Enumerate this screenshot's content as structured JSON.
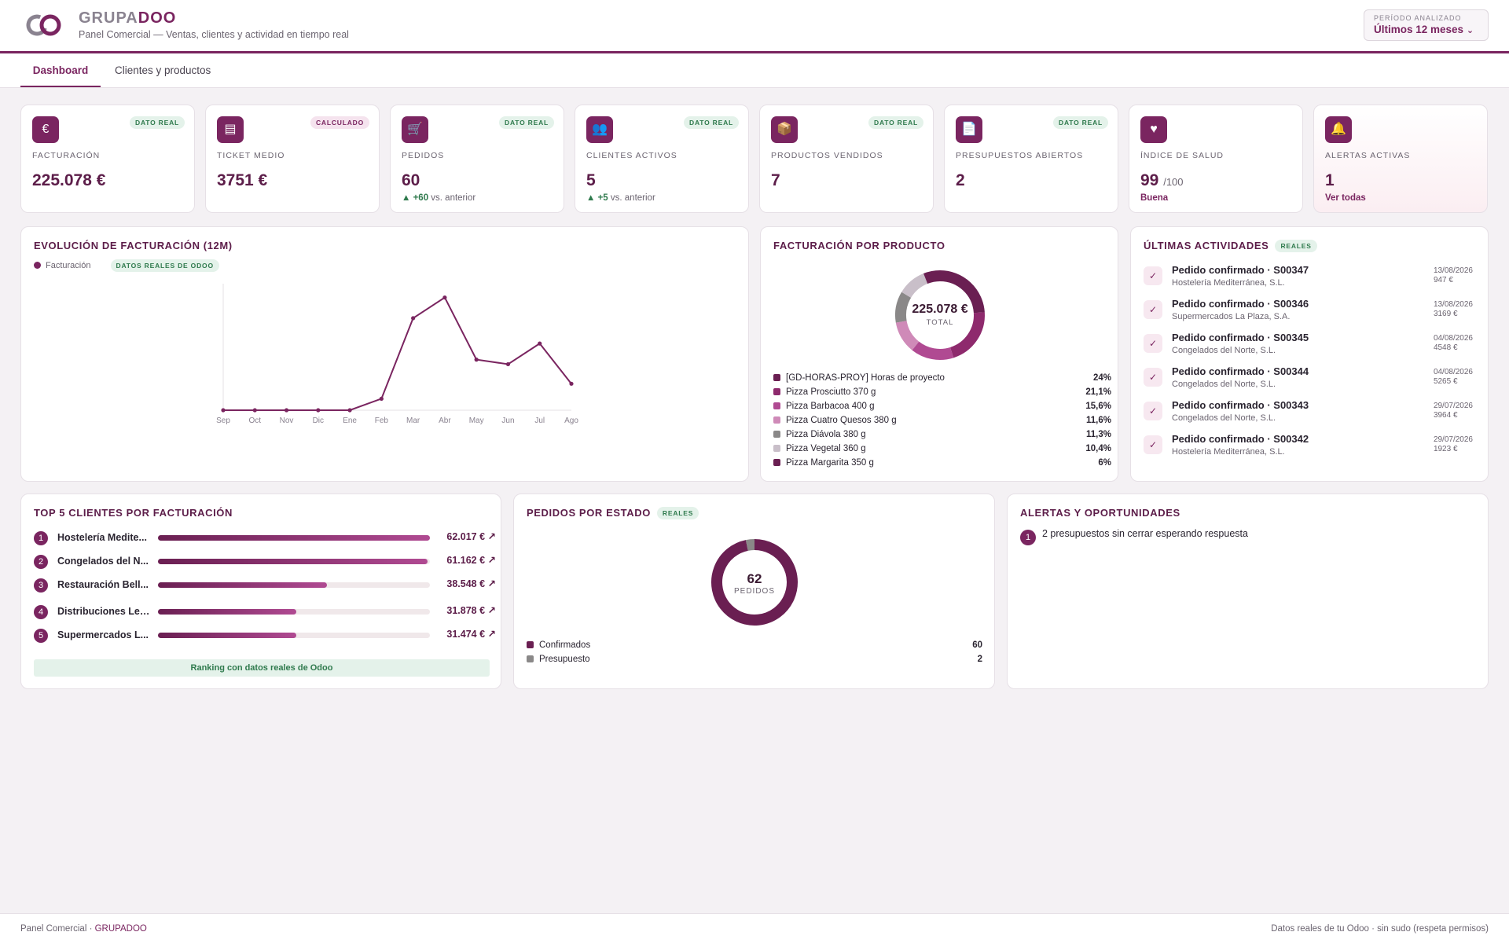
{
  "header": {
    "brand_part1": "GRUPA",
    "brand_part2": "DOO",
    "subtitle": "Panel Comercial — Ventas, clientes y actividad en tiempo real",
    "period_label": "PERÍODO ANALIZADO",
    "period_value": "Últimos 12 meses"
  },
  "tabs": [
    {
      "label": "Dashboard",
      "active": true
    },
    {
      "label": "Clientes y productos",
      "active": false
    }
  ],
  "kpis": [
    {
      "icon": "euro-icon",
      "glyph": "€",
      "badge": "DATO REAL",
      "label": "FACTURACIÓN",
      "value": "225.078 €"
    },
    {
      "icon": "receipt-icon",
      "glyph": "▤",
      "badge": "CALCULADO",
      "label": "TICKET MEDIO",
      "value": "3751 €"
    },
    {
      "icon": "cart-icon",
      "glyph": "🛒",
      "badge": "DATO REAL",
      "label": "PEDIDOS",
      "value": "60",
      "delta": "▲ +60",
      "delta_text": " vs. anterior"
    },
    {
      "icon": "users-icon",
      "glyph": "👥",
      "badge": "DATO REAL",
      "label": "CLIENTES ACTIVOS",
      "value": "5",
      "delta": "▲ +5",
      "delta_text": " vs. anterior"
    },
    {
      "icon": "box-icon",
      "glyph": "📦",
      "badge": "DATO REAL",
      "label": "PRODUCTOS VENDIDOS",
      "value": "7"
    },
    {
      "icon": "document-icon",
      "glyph": "📄",
      "badge": "DATO REAL",
      "label": "PRESUPUESTOS ABIERTOS",
      "value": "2"
    },
    {
      "icon": "heart-icon",
      "glyph": "♥",
      "label": "ÍNDICE DE SALUD",
      "value": "99",
      "value_suffix": "/100",
      "sub": "Buena"
    },
    {
      "icon": "bell-icon",
      "glyph": "🔔",
      "label": "ALERTAS ACTIVAS",
      "value": "1",
      "sub": "Ver todas"
    }
  ],
  "revenue_chart": {
    "title": "EVOLUCIÓN DE FACTURACIÓN (12M)",
    "badge": "DATOS REALES DE ODOO",
    "chart_data": {
      "type": "line",
      "categories": [
        "Sep",
        "Oct",
        "Nov",
        "Dic",
        "Ene",
        "Feb",
        "Mar",
        "Abr",
        "May",
        "Jun",
        "Jul",
        "Ago"
      ],
      "series": [
        {
          "name": "Facturación",
          "values": [
            0,
            0,
            0,
            0,
            0,
            5000,
            40000,
            49000,
            22000,
            20000,
            29000,
            11500
          ]
        }
      ],
      "ylim": [
        0,
        55000
      ],
      "grid": false,
      "accent": "#7a2560"
    }
  },
  "product_chart": {
    "title": "FACTURACIÓN POR PRODUCTO",
    "center_value": "225.078 €",
    "center_label": "TOTAL",
    "chart_data": {
      "type": "pie",
      "categories": [
        "[GD-HORAS-PROY] Horas de proyecto",
        "Pizza Prosciutto 370 g",
        "Pizza Barbacoa 400 g",
        "Pizza Cuatro Quesos 380 g",
        "Pizza Diávola 380 g",
        "Pizza Vegetal 360 g",
        "Pizza Margarita 350 g"
      ],
      "values": [
        24,
        21.1,
        15.6,
        11.6,
        11.3,
        10.4,
        6
      ],
      "labels": [
        "24%",
        "21,1%",
        "15,6%",
        "11,6%",
        "11,3%",
        "10,4%",
        "6%"
      ],
      "colors": [
        "#6a1f52",
        "#8e2a6d",
        "#b04a92",
        "#cf8ab8",
        "#8a8888",
        "#c9bfc9",
        "#6a1f52"
      ]
    }
  },
  "activities": {
    "title": "ÚLTIMAS ACTIVIDADES",
    "badge": "REALES",
    "items": [
      {
        "title": "Pedido confirmado · S00347",
        "client": "Hostelería Mediterránea, S.L.",
        "date": "13/08/2026",
        "amount": "947 €"
      },
      {
        "title": "Pedido confirmado · S00346",
        "client": "Supermercados La Plaza, S.A.",
        "date": "13/08/2026",
        "amount": "3169 €"
      },
      {
        "title": "Pedido confirmado · S00345",
        "client": "Congelados del Norte, S.L.",
        "date": "04/08/2026",
        "amount": "4548 €"
      },
      {
        "title": "Pedido confirmado · S00344",
        "client": "Congelados del Norte, S.L.",
        "date": "04/08/2026",
        "amount": "5265 €"
      },
      {
        "title": "Pedido confirmado · S00343",
        "client": "Congelados del Norte, S.L.",
        "date": "29/07/2026",
        "amount": "3964 €"
      },
      {
        "title": "Pedido confirmado · S00342",
        "client": "Hostelería Mediterránea, S.L.",
        "date": "29/07/2026",
        "amount": "1923 €"
      }
    ]
  },
  "top_clients": {
    "title": "TOP 5 CLIENTES POR FACTURACIÓN",
    "footer": "Ranking con datos reales de Odoo",
    "items": [
      {
        "rank": "1",
        "name": "Hostelería Medite...",
        "value": "62.017 € ↗",
        "fraction": 1.0
      },
      {
        "rank": "2",
        "name": "Congelados del N...",
        "value": "61.162 € ↗",
        "fraction": 0.99
      },
      {
        "rank": "3",
        "name": "Restauración Bell...",
        "value": "38.548 € ↗",
        "fraction": 0.62
      },
      {
        "rank": "4",
        "name": "Distribuciones Lev...",
        "value": "31.878 € ↗",
        "fraction": 0.51
      },
      {
        "rank": "5",
        "name": "Supermercados L...",
        "value": "31.474 € ↗",
        "fraction": 0.51
      }
    ]
  },
  "orders_chart": {
    "title": "PEDIDOS POR ESTADO",
    "badge": "REALES",
    "center_value": "62",
    "center_label": "PEDIDOS",
    "chart_data": {
      "type": "pie",
      "categories": [
        "Confirmados",
        "Presupuesto"
      ],
      "values": [
        60,
        2
      ],
      "colors": [
        "#6a1f52",
        "#8a8888"
      ]
    }
  },
  "alerts": {
    "title": "ALERTAS Y OPORTUNIDADES",
    "items": [
      {
        "n": "1",
        "text": "2 presupuestos sin cerrar esperando respuesta"
      }
    ]
  },
  "footer": {
    "left_prefix": "Panel Comercial · ",
    "left_brand": "GRUPADOO",
    "right": "Datos reales de tu Odoo · sin sudo (respeta permisos)"
  }
}
